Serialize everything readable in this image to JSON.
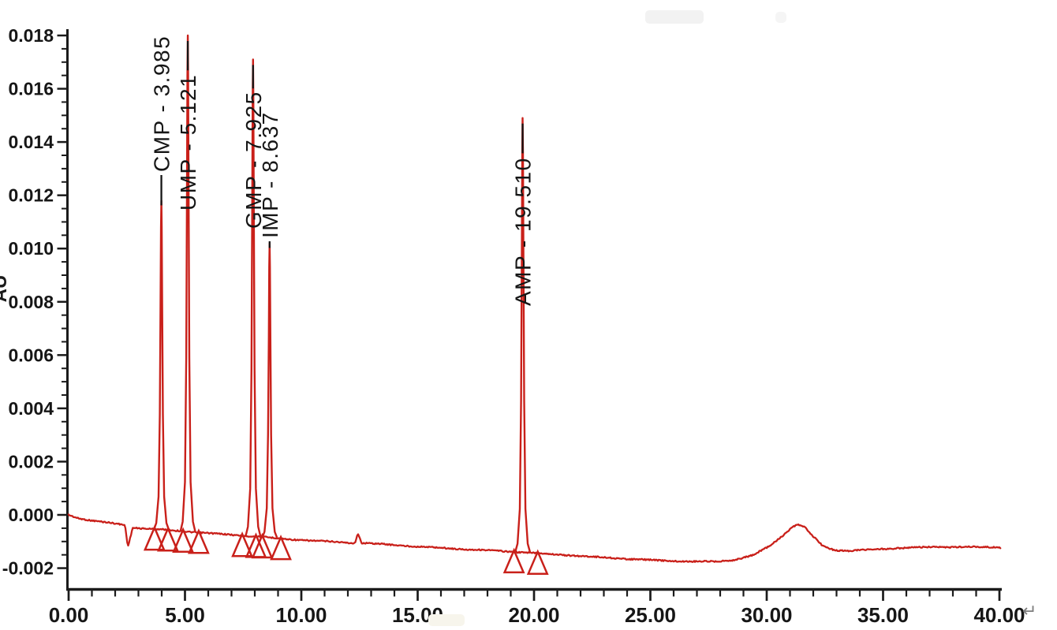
{
  "page": {
    "background": "#ffffff",
    "return_mark": "↵"
  },
  "chart_data": {
    "type": "line",
    "title": "",
    "subtitle": "",
    "xlabel": "",
    "ylabel": "AU",
    "legend": "none",
    "grid": false,
    "trace_color": "#c9201a",
    "axis_color": "#1b1b1b",
    "text_color": "#161616",
    "xlim": [
      0,
      40
    ],
    "ylim": [
      -0.002,
      0.018
    ],
    "x_axis": {
      "major_values": [
        0,
        5,
        10,
        15,
        20,
        25,
        30,
        35,
        40
      ],
      "major_labels": [
        "0.00",
        "5.00",
        "10.00",
        "15.00",
        "20.00",
        "25.00",
        "30.00",
        "35.00",
        "40.00"
      ],
      "minor_step": 1
    },
    "y_axis": {
      "major_values": [
        0.018,
        0.016,
        0.014,
        0.012,
        0.01,
        0.008,
        0.006,
        0.004,
        0.002,
        0.0,
        -0.002
      ],
      "major_labels": [
        "0.018",
        "0.016",
        "0.014",
        "0.012",
        "0.010",
        "0.008",
        "0.006",
        "0.004",
        "0.002",
        "0.000",
        "-0.002"
      ],
      "minor_step": 0.0005
    },
    "peaks": [
      {
        "name": "CMP",
        "label": "CMP - 3.985",
        "retention_time": 3.985,
        "apex_au": 0.0118,
        "integration_start": 3.69,
        "integration_end": 4.27
      },
      {
        "name": "UMP",
        "label": "UMP - 5.121",
        "retention_time": 5.121,
        "apex_au": 0.018,
        "integration_start": 4.92,
        "integration_end": 5.59
      },
      {
        "name": "GMP",
        "label": "GMP - 7.925",
        "retention_time": 7.925,
        "apex_au": 0.0171,
        "integration_start": 7.46,
        "integration_end": 8.05
      },
      {
        "name": "IMP",
        "label": "IMP - 8.637",
        "retention_time": 8.637,
        "apex_au": 0.0102,
        "integration_start": 8.32,
        "integration_end": 9.12
      },
      {
        "name": "AMP",
        "label": "AMP - 19.510",
        "retention_time": 19.51,
        "apex_au": 0.0149,
        "integration_start": 19.14,
        "integration_end": 20.16
      }
    ],
    "baseline": [
      [
        0.0,
        0.0
      ],
      [
        0.4,
        -0.00012
      ],
      [
        0.9,
        -0.0002
      ],
      [
        1.5,
        -0.00027
      ],
      [
        2.1,
        -0.00034
      ],
      [
        2.42,
        -0.00038
      ],
      [
        2.55,
        -0.0012
      ],
      [
        2.75,
        -0.00048
      ],
      [
        3.4,
        -0.00052
      ],
      [
        4.3,
        -0.00057
      ],
      [
        5.3,
        -0.00064
      ],
      [
        6.2,
        -0.0007
      ],
      [
        7.2,
        -0.00076
      ],
      [
        8.2,
        -0.00082
      ],
      [
        9.2,
        -0.0009
      ],
      [
        10.5,
        -0.00097
      ],
      [
        11.8,
        -0.00103
      ],
      [
        12.3,
        -0.00106
      ],
      [
        12.42,
        -0.0007
      ],
      [
        12.6,
        -0.00105
      ],
      [
        13.8,
        -0.00112
      ],
      [
        15.2,
        -0.0012
      ],
      [
        16.8,
        -0.00128
      ],
      [
        18.2,
        -0.00134
      ],
      [
        19.6,
        -0.00141
      ],
      [
        21.2,
        -0.0015
      ],
      [
        22.8,
        -0.00159
      ],
      [
        24.2,
        -0.00166
      ],
      [
        25.6,
        -0.00172
      ],
      [
        26.8,
        -0.00175
      ],
      [
        27.8,
        -0.00175
      ],
      [
        28.6,
        -0.00169
      ],
      [
        29.4,
        -0.00152
      ],
      [
        30.1,
        -0.00118
      ],
      [
        30.7,
        -0.00077
      ],
      [
        31.1,
        -0.00046
      ],
      [
        31.35,
        -0.00036
      ],
      [
        31.65,
        -0.00048
      ],
      [
        32.0,
        -0.00082
      ],
      [
        32.4,
        -0.00116
      ],
      [
        32.9,
        -0.00132
      ],
      [
        33.5,
        -0.00135
      ],
      [
        34.5,
        -0.0013
      ],
      [
        35.8,
        -0.00124
      ],
      [
        37.2,
        -0.00121
      ],
      [
        38.6,
        -0.0012
      ],
      [
        40.05,
        -0.00122
      ]
    ]
  }
}
